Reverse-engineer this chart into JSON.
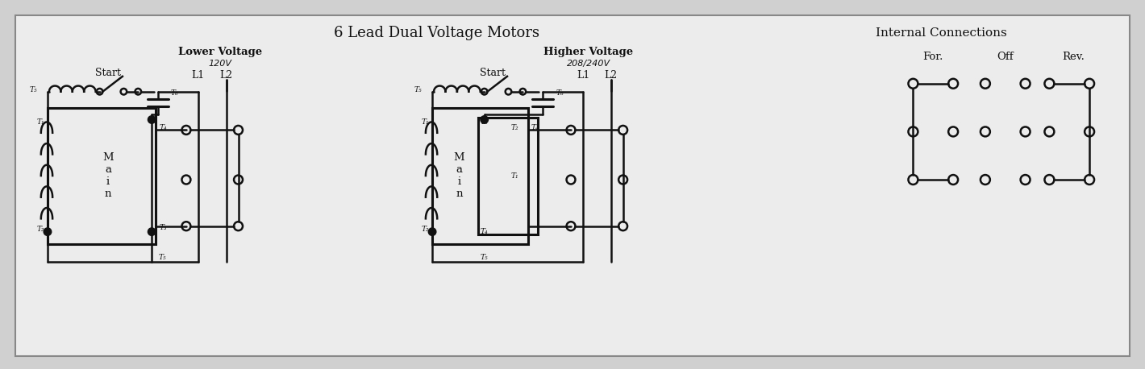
{
  "title_main": "6 Lead Dual Voltage Motors",
  "title_right": "Internal Connections",
  "bg_color": "#d0d0d0",
  "panel_color": "#ececec",
  "line_color": "#111111",
  "lower_voltage_label": "Lower Voltage",
  "lower_voltage_sub": "120V",
  "higher_voltage_label": "Higher Voltage",
  "higher_voltage_sub": "208/240V",
  "for_label": "For.",
  "off_label": "Off",
  "rev_label": "Rev."
}
